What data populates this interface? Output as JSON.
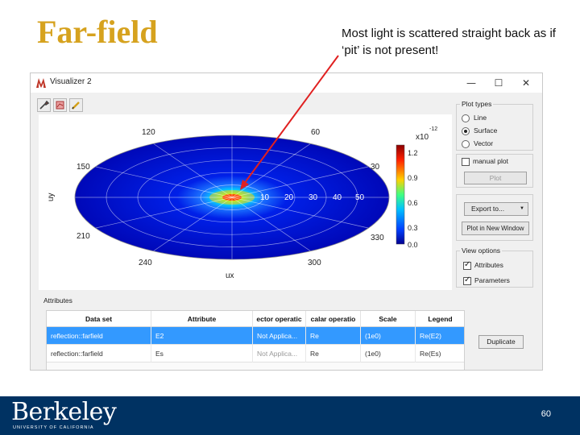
{
  "slide": {
    "title": "Far-field",
    "callout": "Most light is scattered straight back as if ‘pit’ is not present!",
    "page_number": "60",
    "accent_color": "#d6a21e",
    "footer_color": "#003262"
  },
  "logo": {
    "text": "Berkeley",
    "subtext": "UNIVERSITY OF CALIFORNIA"
  },
  "window": {
    "title": "Visualizer 2",
    "controls": [
      "—",
      "☐",
      "✕"
    ],
    "toolbar_icons": [
      "wrench-icon",
      "chart-icon",
      "pencil-icon"
    ]
  },
  "plot": {
    "angle_labels": [
      "120",
      "60",
      "150",
      "30",
      "210",
      "330",
      "240",
      "300"
    ],
    "radial_labels": [
      "10",
      "20",
      "30",
      "40",
      "50"
    ],
    "xlabel": "ux",
    "ylabel": "uy",
    "colorbar": {
      "scale_label": "x10",
      "exponent": "-12",
      "ticks": [
        "1.2",
        "0.9",
        "0.6",
        "0.3",
        "0.0"
      ]
    }
  },
  "plot_types": {
    "title": "Plot types",
    "options": [
      "Line",
      "Surface",
      "Vector"
    ],
    "selected": "Surface",
    "manual_plot": "manual plot",
    "plot_button": "Plot"
  },
  "export": {
    "export_button": "Export to...",
    "new_window_button": "Plot in New Window"
  },
  "view_options": {
    "title": "View options",
    "items": [
      "Attributes",
      "Parameters"
    ]
  },
  "attributes": {
    "label": "Attributes",
    "columns": [
      "Data set",
      "Attribute",
      "ector operatic",
      "calar operatio",
      "Scale",
      "Legend"
    ],
    "rows": [
      [
        "reflection::farfield",
        "E2",
        "Not Applica...",
        "Re",
        "(1e0)",
        "Re(E2)"
      ],
      [
        "reflection::farfield",
        "Es",
        "Not Applica...",
        "Re",
        "(1e0)",
        "Re(Es)"
      ]
    ],
    "duplicate_button": "Duplicate"
  }
}
